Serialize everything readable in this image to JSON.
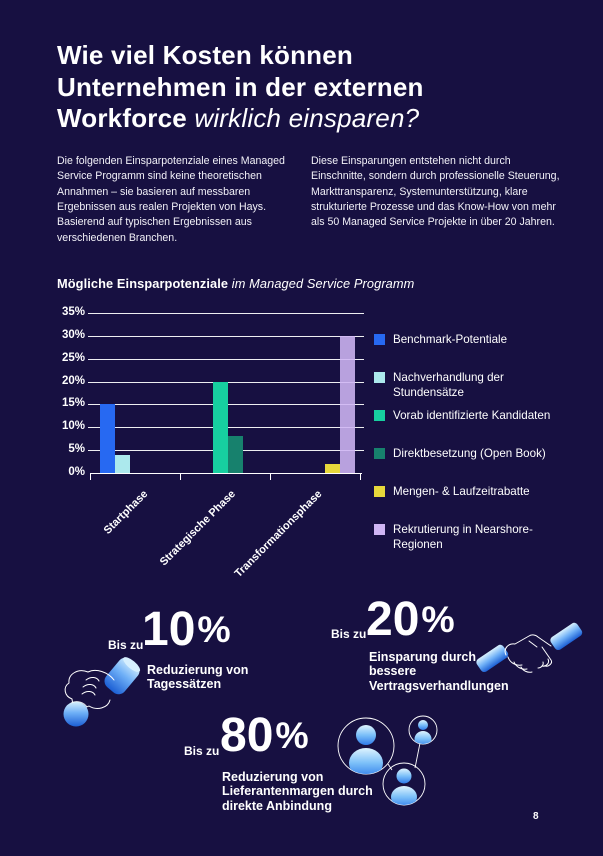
{
  "page": {
    "background": "#171041",
    "page_number": "8"
  },
  "header": {
    "title_line1": "Wie viel Kosten können",
    "title_line2": "Unternehmen in der externen",
    "title_line3_bold": "Workforce",
    "title_line3_italic": "wirklich einsparen?"
  },
  "intro": {
    "left": "Die folgenden Einsparpotenziale eines Managed Service Programm sind keine theoretischen Annahmen – sie basieren auf messbaren Ergebnissen aus realen Projekten von Hays. Basierend auf typischen Ergebnissen aus verschiedenen Branchen.",
    "right": "Diese Einsparungen entstehen nicht durch Einschnitte, sondern durch professionelle Steuerung, Markttransparenz, Systemunterstützung, klare strukturierte Prozesse und das Know-How von mehr als 50 Managed Service Projekte in über 20 Jahren."
  },
  "chart_title": {
    "bold": "Mögliche Einsparpotenziale",
    "italic": " im Managed Service Programm"
  },
  "chart_data": {
    "type": "bar",
    "title": "Mögliche Einsparpotenziale im Managed Service Programm",
    "categories": [
      "Startphase",
      "Strategische Phase",
      "Transformationsphase"
    ],
    "series": [
      {
        "name": "Benchmark-Potentiale",
        "color": "#2769f2",
        "values": [
          15,
          0,
          0
        ]
      },
      {
        "name": "Nachverhandlung der Stundensätze",
        "color": "#ace9ed",
        "values": [
          4,
          0,
          0
        ]
      },
      {
        "name": "Vorab identifizierte Kandidaten",
        "color": "#17cfa0",
        "values": [
          0,
          20,
          0
        ]
      },
      {
        "name": "Direktbesetzung (Open Book)",
        "color": "#17816d",
        "values": [
          0,
          8,
          0
        ]
      },
      {
        "name": "Mengen- & Laufzeitrabatte",
        "color": "#e7d83b",
        "values": [
          0,
          0,
          2
        ]
      },
      {
        "name": "Rekrutierung in Nearshore-Regionen",
        "color": "#cfb5f4",
        "values": [
          0,
          0,
          30
        ],
        "translucent": true
      }
    ],
    "ylim": [
      0,
      35
    ],
    "ytick_step": 5,
    "ytick_suffix": "%",
    "grid": true,
    "legend_position": "right"
  },
  "stats": [
    {
      "prefix": "Bis zu",
      "value": "10",
      "suffix": "%",
      "caption": "Reduzierung von\nTagessätzen",
      "icon": "hand-coin-icon"
    },
    {
      "prefix": "Bis zu",
      "value": "20",
      "suffix": "%",
      "caption": "Einsparung durch\nbessere\nVertragsverhandlungen",
      "icon": "handshake-icon"
    },
    {
      "prefix": "Bis zu",
      "value": "80",
      "suffix": "%",
      "caption": "Reduzierung von\nLieferantenmargen durch\ndirekte Anbindung",
      "icon": "people-network-icon"
    }
  ]
}
